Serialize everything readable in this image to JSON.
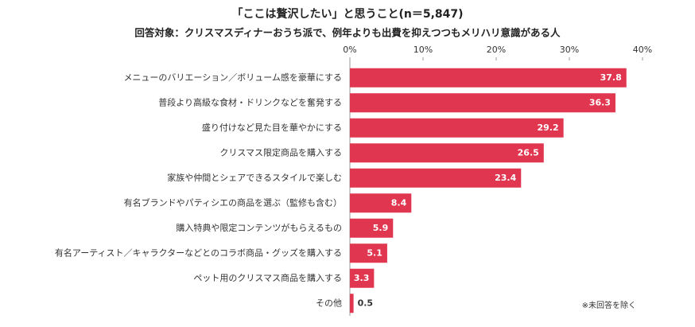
{
  "chart_data": {
    "type": "barh",
    "title": "「ここは贅沢したい」と思うこと(n＝5,847)",
    "subtitle": "回答対象：クリスマスディナーおうち派で、例年よりも出費を抑えつつもメリハリ意識がある人",
    "note": "※未回答を除く",
    "categories": [
      "メニューのバリエーション／ボリューム感を豪華にする",
      "普段より高級な食材・ドリンクなどを奮発する",
      "盛り付けなど見た目を華やかにする",
      "クリスマス限定商品を購入する",
      "家族や仲間とシェアできるスタイルで楽しむ",
      "有名ブランドやパティシエの商品を選ぶ（監修も含む）",
      "購入特典や限定コンテンツがもらえるもの",
      "有名アーティスト／キャラクターなどとのコラボ商品・グッズを購入する",
      "ペット用のクリスマス商品を購入する",
      "その他"
    ],
    "values": [
      37.8,
      36.3,
      29.2,
      26.5,
      23.4,
      8.4,
      5.9,
      5.1,
      3.3,
      0.5
    ],
    "color": "#e0364f",
    "xlim": [
      0,
      40
    ],
    "xticks": [
      {
        "value": 0,
        "label": "0%"
      },
      {
        "value": 10,
        "label": "10%"
      },
      {
        "value": 20,
        "label": "20%"
      },
      {
        "value": 30,
        "label": "30%"
      },
      {
        "value": 40,
        "label": "40%"
      }
    ],
    "grid": false
  }
}
